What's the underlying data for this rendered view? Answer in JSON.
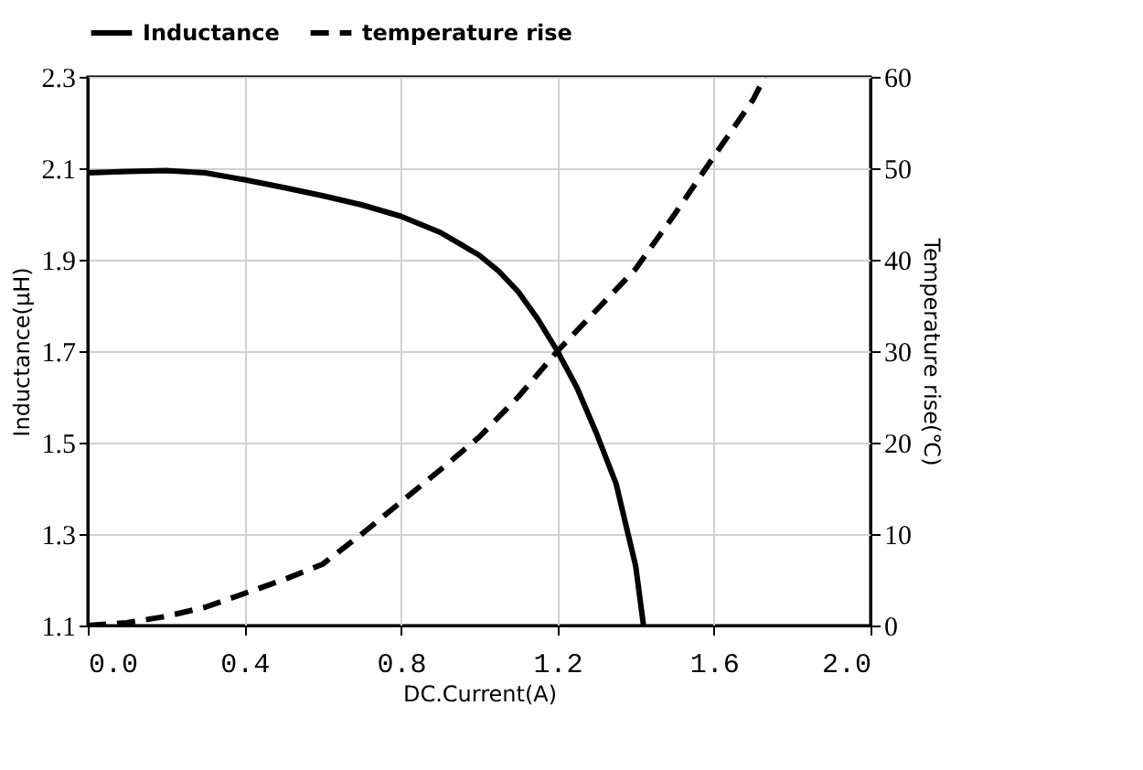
{
  "chart_data": {
    "type": "line",
    "xlabel": "DC.Current(A)",
    "ylabel": "Inductance(μH)",
    "y2label": "Temperature rise(℃)",
    "xlim": [
      0,
      2.0
    ],
    "xticks": [
      {
        "value": 0,
        "label": "0.0"
      },
      0.4,
      0.8,
      1.2,
      1.6,
      {
        "value": 2,
        "label": "2.0"
      }
    ],
    "ylim": [
      1.1,
      2.3
    ],
    "yticks": [
      1.1,
      1.3,
      1.5,
      1.7,
      1.9,
      2.1,
      2.3
    ],
    "y2lim": [
      0,
      60
    ],
    "y2ticks": [
      0,
      10,
      20,
      30,
      40,
      50,
      60
    ],
    "grid": true,
    "legend": "top",
    "series": [
      {
        "name": "Inductance",
        "color": "#000000",
        "line_style": "solid",
        "x": [
          0,
          0.1,
          0.2,
          0.3,
          0.4,
          0.5,
          0.6,
          0.7,
          0.8,
          0.9,
          1.0,
          1.05,
          1.1,
          1.15,
          1.2,
          1.25,
          1.3,
          1.35,
          1.4,
          1.42
        ],
        "values": [
          2.09,
          2.093,
          2.095,
          2.09,
          2.075,
          2.058,
          2.04,
          2.02,
          1.995,
          1.96,
          1.91,
          1.875,
          1.83,
          1.77,
          1.7,
          1.62,
          1.52,
          1.41,
          1.23,
          1.1
        ]
      },
      {
        "name": "temperature rise",
        "color": "#000000",
        "line_style": "dashed",
        "axis": "y2",
        "x": [
          0,
          0.1,
          0.2,
          0.3,
          0.4,
          0.5,
          0.6,
          0.7,
          0.8,
          0.9,
          1.0,
          1.1,
          1.2,
          1.3,
          1.4,
          1.5,
          1.6,
          1.7,
          1.73
        ],
        "values": [
          0,
          0.3,
          1,
          2,
          3.5,
          5,
          6.7,
          10,
          13.5,
          17,
          20.6,
          25,
          30,
          34.5,
          39,
          45,
          51.3,
          57.5,
          60
        ]
      }
    ]
  }
}
